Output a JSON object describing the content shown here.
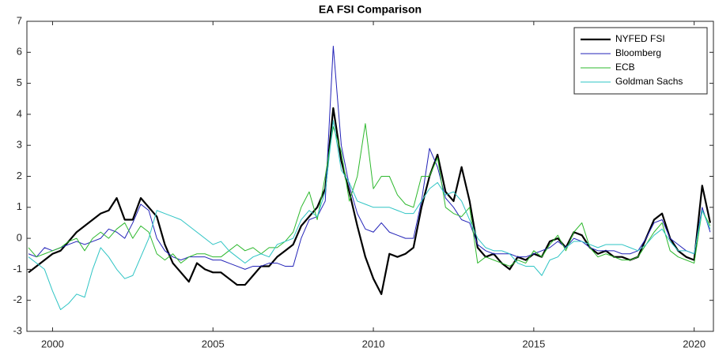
{
  "chart_data": {
    "type": "line",
    "title": "EA FSI Comparison",
    "x": [
      1999.25,
      1999.5,
      1999.75,
      2000,
      2000.25,
      2000.5,
      2000.75,
      2001,
      2001.25,
      2001.5,
      2001.75,
      2002,
      2002.25,
      2002.5,
      2002.75,
      2003,
      2003.25,
      2003.5,
      2003.75,
      2004,
      2004.25,
      2004.5,
      2004.75,
      2005,
      2005.25,
      2005.5,
      2005.75,
      2006,
      2006.25,
      2006.5,
      2006.75,
      2007,
      2007.25,
      2007.5,
      2007.75,
      2008,
      2008.25,
      2008.5,
      2008.75,
      2009,
      2009.25,
      2009.5,
      2009.75,
      2010,
      2010.25,
      2010.5,
      2010.75,
      2011,
      2011.25,
      2011.5,
      2011.75,
      2012,
      2012.25,
      2012.5,
      2012.75,
      2013,
      2013.25,
      2013.5,
      2013.75,
      2014,
      2014.25,
      2014.5,
      2014.75,
      2015,
      2015.25,
      2015.5,
      2015.75,
      2016,
      2016.25,
      2016.5,
      2016.75,
      2017,
      2017.25,
      2017.5,
      2017.75,
      2018,
      2018.25,
      2018.5,
      2018.75,
      2019,
      2019.25,
      2019.5,
      2019.75,
      2020,
      2020.25,
      2020.5
    ],
    "series": [
      {
        "name": "NYFED FSI",
        "color": "#000000",
        "width": 2.2,
        "values": [
          -1.1,
          -0.9,
          -0.7,
          -0.5,
          -0.4,
          -0.1,
          0.2,
          0.4,
          0.6,
          0.8,
          0.9,
          1.3,
          0.6,
          0.6,
          1.3,
          1.0,
          0.7,
          -0.2,
          -0.8,
          -1.1,
          -1.4,
          -0.8,
          -1.0,
          -1.1,
          -1.1,
          -1.3,
          -1.5,
          -1.5,
          -1.2,
          -0.9,
          -0.9,
          -0.6,
          -0.4,
          -0.2,
          0.4,
          0.7,
          1.0,
          1.6,
          4.2,
          2.5,
          1.5,
          0.4,
          -0.6,
          -1.3,
          -1.8,
          -0.5,
          -0.6,
          -0.5,
          -0.3,
          1.0,
          2.0,
          2.7,
          1.5,
          1.2,
          2.3,
          1.2,
          -0.3,
          -0.6,
          -0.5,
          -0.8,
          -1.0,
          -0.6,
          -0.7,
          -0.5,
          -0.6,
          -0.1,
          0.0,
          -0.3,
          0.2,
          0.1,
          -0.3,
          -0.5,
          -0.4,
          -0.6,
          -0.6,
          -0.7,
          -0.6,
          0.0,
          0.6,
          0.8,
          0.0,
          -0.4,
          -0.6,
          -0.7,
          1.7,
          0.5
        ]
      },
      {
        "name": "Bloomberg",
        "color": "#2323b8",
        "width": 1,
        "values": [
          -0.5,
          -0.6,
          -0.3,
          -0.4,
          -0.3,
          -0.2,
          -0.1,
          -0.2,
          -0.1,
          0.0,
          0.3,
          0.2,
          0.0,
          0.5,
          1.1,
          0.9,
          0.0,
          -0.4,
          -0.6,
          -0.7,
          -0.6,
          -0.6,
          -0.6,
          -0.7,
          -0.7,
          -0.8,
          -0.9,
          -1.0,
          -0.9,
          -0.9,
          -0.8,
          -0.8,
          -0.9,
          -0.9,
          0.0,
          0.6,
          0.7,
          1.2,
          6.2,
          3.0,
          1.7,
          0.8,
          0.3,
          0.2,
          0.5,
          0.2,
          0.1,
          0.0,
          0.0,
          1.2,
          2.9,
          2.3,
          1.3,
          1.0,
          0.6,
          0.5,
          -0.2,
          -0.4,
          -0.5,
          -0.5,
          -0.5,
          -0.6,
          -0.6,
          -0.5,
          -0.4,
          -0.3,
          -0.1,
          -0.3,
          0.0,
          -0.1,
          -0.3,
          -0.4,
          -0.4,
          -0.4,
          -0.5,
          -0.5,
          -0.4,
          0.0,
          0.5,
          0.6,
          0.0,
          -0.2,
          -0.4,
          -0.5,
          1.0,
          0.2
        ]
      },
      {
        "name": "ECB",
        "color": "#2db82d",
        "width": 1,
        "values": [
          -0.3,
          -0.6,
          -0.5,
          -0.4,
          -0.3,
          -0.1,
          0.0,
          -0.4,
          0.0,
          0.2,
          0.0,
          0.3,
          0.5,
          0.0,
          0.4,
          0.2,
          -0.5,
          -0.7,
          -0.5,
          -0.8,
          -0.6,
          -0.5,
          -0.5,
          -0.6,
          -0.6,
          -0.4,
          -0.2,
          -0.4,
          -0.3,
          -0.5,
          -0.3,
          -0.3,
          -0.1,
          0.2,
          1.0,
          1.5,
          0.6,
          2.0,
          3.6,
          2.8,
          1.2,
          2.0,
          3.7,
          1.6,
          2.0,
          2.0,
          1.4,
          1.1,
          1.0,
          2.0,
          2.0,
          2.6,
          1.0,
          0.8,
          0.7,
          1.0,
          -0.8,
          -0.6,
          -0.7,
          -0.8,
          -0.9,
          -0.7,
          -0.8,
          -0.4,
          -0.6,
          -0.2,
          0.1,
          -0.4,
          0.2,
          0.5,
          -0.3,
          -0.6,
          -0.5,
          -0.6,
          -0.7,
          -0.7,
          -0.6,
          -0.2,
          0.2,
          0.5,
          -0.4,
          -0.6,
          -0.7,
          -0.8,
          0.9,
          0.4
        ]
      },
      {
        "name": "Goldman Sachs",
        "color": "#2ec4c4",
        "width": 1,
        "values": [
          -0.6,
          -0.8,
          -1.0,
          -1.7,
          -2.3,
          -2.1,
          -1.8,
          -1.9,
          -1.0,
          -0.3,
          -0.6,
          -1.0,
          -1.3,
          -1.2,
          -0.6,
          0.0,
          0.9,
          0.8,
          0.7,
          0.6,
          0.4,
          0.2,
          0.0,
          -0.2,
          -0.1,
          -0.4,
          -0.6,
          -0.8,
          -0.6,
          -0.5,
          -0.6,
          -0.2,
          -0.1,
          0.0,
          0.6,
          0.9,
          0.7,
          1.5,
          3.8,
          2.2,
          1.8,
          1.2,
          1.1,
          1.0,
          1.0,
          1.0,
          0.9,
          0.8,
          0.8,
          1.2,
          1.6,
          1.8,
          1.4,
          1.5,
          1.2,
          0.6,
          0.0,
          -0.3,
          -0.4,
          -0.4,
          -0.5,
          -0.8,
          -0.9,
          -0.9,
          -1.2,
          -0.7,
          -0.6,
          -0.3,
          -0.1,
          -0.1,
          -0.2,
          -0.3,
          -0.2,
          -0.2,
          -0.2,
          -0.3,
          -0.4,
          -0.2,
          0.1,
          0.3,
          -0.1,
          -0.4,
          -0.4,
          -0.5,
          0.9,
          0.3
        ]
      }
    ],
    "xlim": [
      1999.2,
      2020.6
    ],
    "xticks": [
      2000,
      2005,
      2010,
      2015,
      2020
    ],
    "ylim": [
      -3,
      7
    ],
    "yticks": [
      -3,
      -2,
      -1,
      0,
      1,
      2,
      3,
      4,
      5,
      6,
      7
    ],
    "legend": "top-right"
  }
}
